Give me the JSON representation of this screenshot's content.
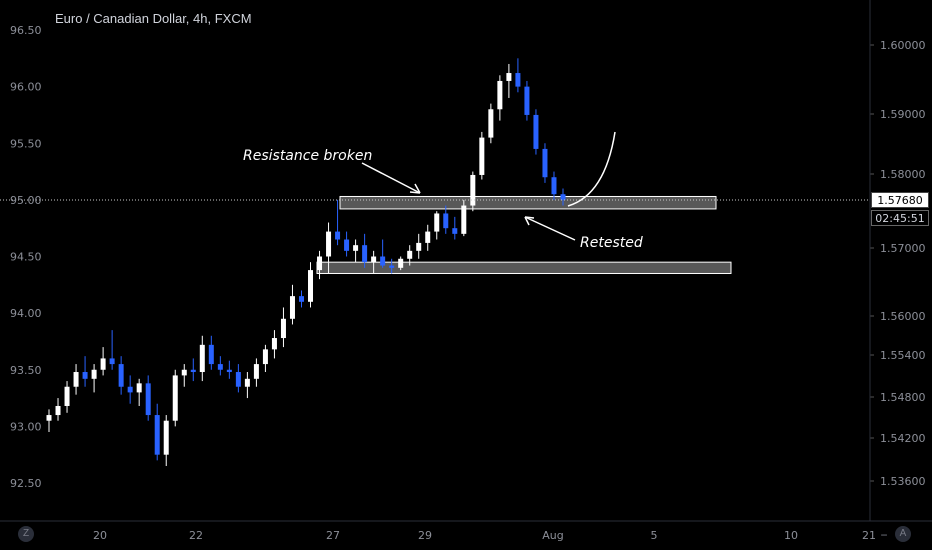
{
  "title": "Euro / Canadian Dollar, 4h, FXCM",
  "left_axis": {
    "labels": [
      "96.50",
      "96.00",
      "95.50",
      "95.00",
      "94.50",
      "94.00",
      "93.50",
      "93.00",
      "92.50"
    ]
  },
  "right_axis": {
    "labels": [
      "1.60000",
      "1.59000",
      "1.58000",
      "1.57000",
      "1.56000",
      "1.55400",
      "1.54800",
      "1.54200",
      "1.53600"
    ]
  },
  "price_tag": "1.57680",
  "countdown": "02:45:51",
  "x_axis": {
    "labels": [
      "20",
      "22",
      "27",
      "29",
      "Aug",
      "5",
      "10",
      "21"
    ]
  },
  "annotations": {
    "resistance": "Resistance broken",
    "retested": "Retested"
  },
  "buttons": {
    "left_corner": "Z",
    "right_corner": "A",
    "zoom_out": "−",
    "zoom_in": "+"
  },
  "colors": {
    "up": "#ffffff",
    "down": "#2962ff",
    "background": "#000000"
  },
  "chart_data": {
    "type": "candlestick",
    "title": "Euro / Canadian Dollar, 4h, FXCM",
    "y_range": [
      92.3,
      96.7
    ],
    "current_price": 95.0,
    "candles": [
      [
        93.05,
        93.15,
        92.95,
        93.1
      ],
      [
        93.1,
        93.25,
        93.05,
        93.18
      ],
      [
        93.18,
        93.4,
        93.12,
        93.35
      ],
      [
        93.35,
        93.55,
        93.28,
        93.48
      ],
      [
        93.48,
        93.62,
        93.35,
        93.42
      ],
      [
        93.42,
        93.55,
        93.3,
        93.5
      ],
      [
        93.5,
        93.7,
        93.45,
        93.6
      ],
      [
        93.6,
        93.85,
        93.5,
        93.55
      ],
      [
        93.55,
        93.62,
        93.28,
        93.35
      ],
      [
        93.35,
        93.45,
        93.2,
        93.3
      ],
      [
        93.3,
        93.42,
        93.18,
        93.38
      ],
      [
        93.38,
        93.45,
        93.05,
        93.1
      ],
      [
        93.1,
        93.2,
        92.7,
        92.75
      ],
      [
        92.75,
        93.1,
        92.65,
        93.05
      ],
      [
        93.05,
        93.5,
        93.0,
        93.45
      ],
      [
        93.45,
        93.55,
        93.35,
        93.5
      ],
      [
        93.5,
        93.6,
        93.4,
        93.48
      ],
      [
        93.48,
        93.8,
        93.4,
        93.72
      ],
      [
        93.72,
        93.8,
        93.5,
        93.55
      ],
      [
        93.55,
        93.62,
        93.45,
        93.5
      ],
      [
        93.5,
        93.58,
        93.42,
        93.48
      ],
      [
        93.48,
        93.55,
        93.3,
        93.35
      ],
      [
        93.35,
        93.48,
        93.25,
        93.42
      ],
      [
        93.42,
        93.6,
        93.35,
        93.55
      ],
      [
        93.55,
        93.72,
        93.48,
        93.68
      ],
      [
        93.68,
        93.85,
        93.6,
        93.78
      ],
      [
        93.78,
        94.05,
        93.7,
        93.95
      ],
      [
        93.95,
        94.25,
        93.9,
        94.15
      ],
      [
        94.15,
        94.2,
        94.05,
        94.1
      ],
      [
        94.1,
        94.45,
        94.05,
        94.38
      ],
      [
        94.38,
        94.55,
        94.3,
        94.5
      ],
      [
        94.5,
        94.8,
        94.35,
        94.72
      ],
      [
        94.72,
        95.0,
        94.6,
        94.65
      ],
      [
        94.65,
        94.72,
        94.5,
        94.55
      ],
      [
        94.55,
        94.65,
        94.45,
        94.6
      ],
      [
        94.6,
        94.7,
        94.4,
        94.45
      ],
      [
        94.45,
        94.55,
        94.35,
        94.5
      ],
      [
        94.5,
        94.65,
        94.4,
        94.42
      ],
      [
        94.42,
        94.48,
        94.35,
        94.4
      ],
      [
        94.4,
        94.5,
        94.38,
        94.48
      ],
      [
        94.48,
        94.6,
        94.42,
        94.55
      ],
      [
        94.55,
        94.7,
        94.48,
        94.62
      ],
      [
        94.62,
        94.78,
        94.55,
        94.72
      ],
      [
        94.72,
        94.9,
        94.65,
        94.88
      ],
      [
        94.88,
        94.95,
        94.7,
        94.75
      ],
      [
        94.75,
        94.85,
        94.65,
        94.7
      ],
      [
        94.7,
        95.0,
        94.68,
        94.95
      ],
      [
        94.95,
        95.25,
        94.9,
        95.22
      ],
      [
        95.22,
        95.6,
        95.18,
        95.55
      ],
      [
        95.55,
        95.85,
        95.5,
        95.8
      ],
      [
        95.8,
        96.1,
        95.7,
        96.05
      ],
      [
        96.05,
        96.2,
        95.9,
        96.12
      ],
      [
        96.12,
        96.25,
        95.95,
        96.0
      ],
      [
        96.0,
        96.05,
        95.7,
        95.75
      ],
      [
        95.75,
        95.8,
        95.4,
        95.45
      ],
      [
        95.45,
        95.5,
        95.15,
        95.2
      ],
      [
        95.2,
        95.25,
        95.0,
        95.05
      ],
      [
        95.05,
        95.1,
        94.95,
        95.0
      ]
    ],
    "zones": [
      {
        "name": "resistance-zone",
        "low": 94.92,
        "high": 95.03
      },
      {
        "name": "support-zone",
        "low": 94.35,
        "high": 94.45
      }
    ]
  }
}
